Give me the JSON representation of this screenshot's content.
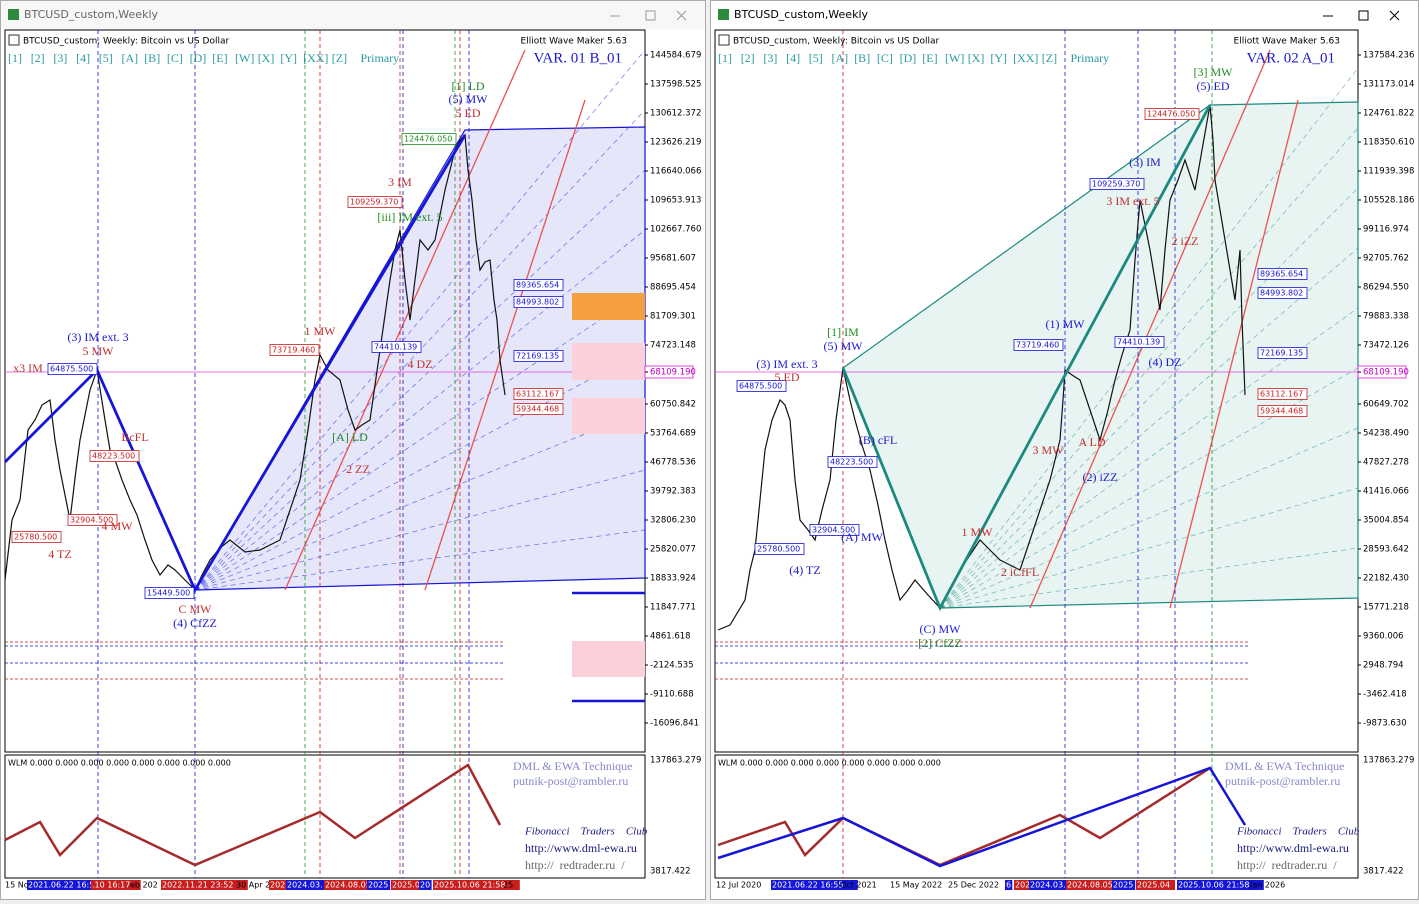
{
  "wave_buttons": [
    "[1]",
    "[2]",
    "[3]",
    "[4]",
    "[5]",
    "[A]",
    "[B]",
    "[C]",
    "[D]",
    "[E]",
    "[W]",
    "[X]",
    "[Y]",
    "[XX]",
    "[Z]",
    "Primary"
  ],
  "windows": [
    {
      "title": "BTCUSD_custom,Weekly",
      "header": "BTCUSD_custom, Weekly:  Bitcoin vs US Dollar",
      "tool": "Elliott Wave Maker 5.63",
      "variant": "VAR. 01 B_01",
      "price_labels": [
        "144584.679",
        "137598.525",
        "130612.372",
        "123626.219",
        "116640.066",
        "109653.913",
        "102667.760",
        "95681.607",
        "88695.454",
        "81709.301",
        "74723.148",
        "68109.190",
        "60750.842",
        "53764.689",
        "46778.536",
        "39792.383",
        "32806.230",
        "25820.077",
        "18833.924",
        "11847.771",
        "4861.618",
        "-2124.535",
        "-9110.688",
        "-16096.841"
      ],
      "date_labels": [
        "15 No",
        "2021.06.22 16:55",
        ".10 16:17",
        "eb 202",
        "2022.11.21 23:52",
        "30 Apr 2",
        "202",
        "2024.03.",
        "2024.08.05",
        "2025",
        "2025.04",
        "20",
        "2025.10.06 21:58",
        "25"
      ],
      "wave_labels": [
        "(3) IM ext. 3",
        "5 MW",
        "x3 IM",
        "BcFL",
        "4 MW",
        "4 TZ",
        "C MW",
        "(4) CfZZ",
        "1 MW",
        "3 IM",
        "4 DZ",
        "2 ZZ",
        "[1] LD",
        "(5) MW",
        "5 ED",
        "[iii] IM ext. 5",
        "[A] LD"
      ],
      "level_boxes": [
        "89365.654",
        "84993.802",
        "72169.135",
        "63112.167",
        "59344.468",
        "73719.460",
        "74410.139",
        "109259.370",
        "124476.050",
        "64875.500",
        "48223.500",
        "32904.500",
        "25780.500",
        "15449.500"
      ],
      "indicator": "WLM 0.000 0.000 0.000 0.000 0.000 0.000 0.000 0.000",
      "indicator_prices": [
        "137863.279",
        "3817.422"
      ],
      "credits": [
        "DML & EWA Technique",
        "putnik-post@rambler.ru",
        "Fibonacci    Traders    Club",
        "http://www.dml-ewa.ru",
        "http://  redtrader.ru  /"
      ]
    },
    {
      "title": "BTCUSD_custom,Weekly",
      "header": "BTCUSD_custom, Weekly:  Bitcoin vs US Dollar",
      "tool": "Elliott Wave Maker 5.63",
      "variant": "VAR. 02 A_01",
      "price_labels": [
        "137584.236",
        "131173.014",
        "124761.822",
        "118350.610",
        "111939.398",
        "105528.186",
        "99116.974",
        "92705.762",
        "86294.550",
        "79883.338",
        "73472.126",
        "68109.190",
        "60649.702",
        "54238.490",
        "47827.278",
        "41416.066",
        "35004.854",
        "28593.642",
        "22182.430",
        "15771.218",
        "9360.006",
        "2948.794",
        "-3462.418",
        "-9873.630"
      ],
      "date_labels": [
        "12 Jul 2020",
        "2021.06.22 16:55",
        "Oct 2021",
        "15 May 2022",
        "25 Dec 2022",
        "6",
        "202",
        "2024.03.",
        "2024.08.05",
        "2025",
        "2025.04",
        "2025.10.06 21:58",
        "Jan 2026"
      ],
      "wave_labels": [
        "[1] IM",
        "(5) MW",
        "(3) IM ext. 3",
        "5 ED",
        "(B) cFL",
        "(A) MW",
        "(4) TZ",
        "(C) MW",
        "[2] CfZZ",
        "1 MW",
        "2 iCfFL",
        "3 MW",
        "(1) MW",
        "(3) IM",
        "3 IM ext. 5",
        "(4) DZ",
        "(2) iZZ",
        "A LD",
        "[3] MW",
        "(5) ED",
        "2 iZZ"
      ],
      "level_boxes": [
        "89365.654",
        "84993.802",
        "72169.135",
        "63112.167",
        "59344.468",
        "73719.460",
        "74410.139",
        "109259.370",
        "124476.050",
        "64875.500",
        "48223.500",
        "32904.500",
        "25780.500"
      ],
      "indicator": "WLM 0.000 0.000 0.000 0.000 0.000 0.000 0.000 0.000",
      "indicator_prices": [
        "137863.279",
        "3817.422"
      ],
      "credits": [
        "DML & EWA Technique",
        "putnik-post@rambler.ru",
        "Fibonacci    Traders    Club",
        "http://www.dml-ewa.ru",
        "http://  redtrader.ru  /"
      ]
    }
  ]
}
